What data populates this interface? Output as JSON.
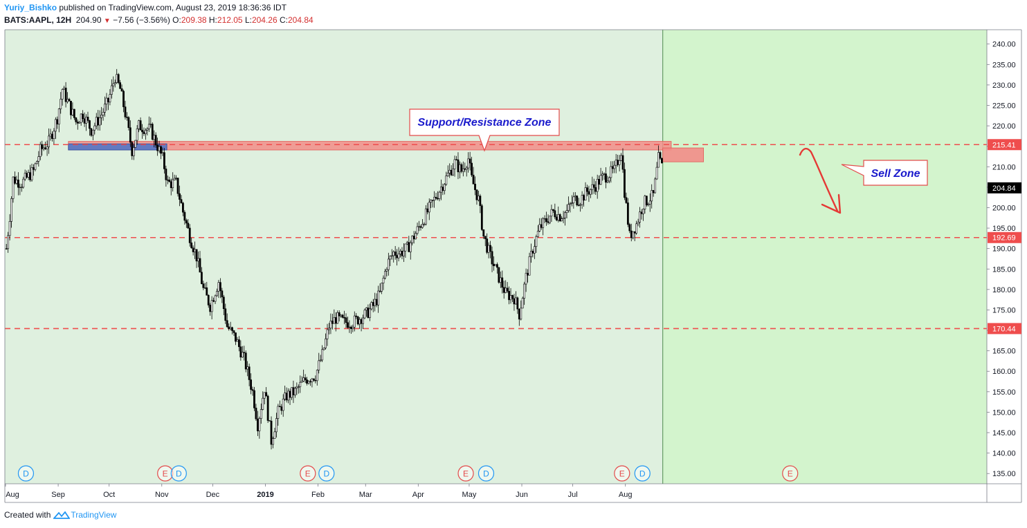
{
  "header": {
    "author": "Yuriy_Bishko",
    "published": "published on TradingView.com, August 23, 2019 18:36:36 IDT",
    "symbol": "BATS:AAPL, 12H",
    "last": "204.90",
    "change": "−7.56 (−3.56%)",
    "open_label": "O:",
    "open": "209.38",
    "high_label": "H:",
    "high": "212.05",
    "low_label": "L:",
    "low": "204.26",
    "close_label": "C:",
    "close": "204.84"
  },
  "footer": {
    "created": "Created with",
    "brand": "TradingView"
  },
  "colors": {
    "past_bg": "#dff0df",
    "future_bg": "#d3f4cd",
    "level": "#ef4d4d",
    "zone_fill": "#f28d88",
    "blue_zone": "#4a74c9",
    "up": "#ffffff",
    "down": "#000000",
    "callout_text": "#1a1acc",
    "event_E": "#e34a4a",
    "event_D": "#2196f3"
  },
  "chart_data": {
    "type": "candlestick",
    "symbol": "BATS:AAPL",
    "timeframe": "12H",
    "ylim": [
      132.5,
      243.5
    ],
    "y_ticks": [
      "135.00",
      "140.00",
      "145.00",
      "150.00",
      "155.00",
      "160.00",
      "165.00",
      "170.00",
      "175.00",
      "180.00",
      "185.00",
      "190.00",
      "195.00",
      "200.00",
      "205.00",
      "210.00",
      "215.00",
      "220.00",
      "225.00",
      "230.00",
      "235.00",
      "240.00"
    ],
    "x_ticks": [
      {
        "label": "Aug",
        "day": 0
      },
      {
        "label": "Sep",
        "day": 31
      },
      {
        "label": "Oct",
        "day": 61
      },
      {
        "label": "Nov",
        "day": 92
      },
      {
        "label": "Dec",
        "day": 122
      },
      {
        "label": "2019",
        "day": 153
      },
      {
        "label": "Feb",
        "day": 184
      },
      {
        "label": "Mar",
        "day": 212
      },
      {
        "label": "Apr",
        "day": 243
      },
      {
        "label": "May",
        "day": 273
      },
      {
        "label": "Jun",
        "day": 304
      },
      {
        "label": "Jul",
        "day": 334
      },
      {
        "label": "Aug",
        "day": 365
      }
    ],
    "levels": [
      {
        "value": 215.41,
        "label": "215.41"
      },
      {
        "value": 192.69,
        "label": "192.69"
      },
      {
        "value": 170.44,
        "label": "170.44"
      }
    ],
    "last_price": {
      "value": 204.84,
      "label": "204.84"
    },
    "current_day": 387,
    "support_resistance_zone": {
      "label": "Support/Resistance Zone",
      "y_low": 214.1,
      "y_high": 216.2,
      "day_start": 37,
      "day_end": 392
    },
    "blue_zone": {
      "y_low": 214.1,
      "y_high": 215.6,
      "day_start": 37,
      "day_end": 95
    },
    "sell_zone": {
      "label": "Sell Zone",
      "y_low": 211.2,
      "y_high": 214.6,
      "day_start": 387,
      "day_end": 411
    },
    "events": [
      {
        "type": "D",
        "day": 12
      },
      {
        "type": "E",
        "day": 94
      },
      {
        "type": "D",
        "day": 102
      },
      {
        "type": "E",
        "day": 178
      },
      {
        "type": "D",
        "day": 189
      },
      {
        "type": "E",
        "day": 271
      },
      {
        "type": "D",
        "day": 283
      },
      {
        "type": "E",
        "day": 363
      },
      {
        "type": "D",
        "day": 375
      },
      {
        "type": "E",
        "day": 462
      }
    ],
    "price_path": [
      [
        0,
        190
      ],
      [
        2,
        198
      ],
      [
        4,
        207
      ],
      [
        9,
        206
      ],
      [
        16,
        209
      ],
      [
        20,
        214
      ],
      [
        25,
        216
      ],
      [
        30,
        222
      ],
      [
        33,
        229
      ],
      [
        37,
        225
      ],
      [
        41,
        221
      ],
      [
        45,
        223
      ],
      [
        50,
        219
      ],
      [
        55,
        222
      ],
      [
        60,
        226
      ],
      [
        64,
        232
      ],
      [
        67,
        229
      ],
      [
        70,
        223
      ],
      [
        74,
        214
      ],
      [
        78,
        220
      ],
      [
        85,
        219
      ],
      [
        92,
        212
      ],
      [
        95,
        206
      ],
      [
        100,
        206
      ],
      [
        104,
        199
      ],
      [
        108,
        193
      ],
      [
        112,
        188
      ],
      [
        116,
        180
      ],
      [
        120,
        176
      ],
      [
        125,
        182
      ],
      [
        130,
        171
      ],
      [
        135,
        168
      ],
      [
        140,
        163
      ],
      [
        145,
        155
      ],
      [
        148,
        147
      ],
      [
        152,
        156
      ],
      [
        156,
        143
      ],
      [
        160,
        150
      ],
      [
        165,
        154
      ],
      [
        170,
        155
      ],
      [
        176,
        158
      ],
      [
        182,
        159
      ],
      [
        186,
        164
      ],
      [
        190,
        171
      ],
      [
        194,
        173
      ],
      [
        199,
        172
      ],
      [
        204,
        172
      ],
      [
        208,
        173
      ],
      [
        212,
        174
      ],
      [
        216,
        176
      ],
      [
        220,
        179
      ],
      [
        224,
        186
      ],
      [
        228,
        189
      ],
      [
        232,
        189
      ],
      [
        236,
        190
      ],
      [
        240,
        193
      ],
      [
        244,
        196
      ],
      [
        248,
        199
      ],
      [
        252,
        202
      ],
      [
        256,
        205
      ],
      [
        260,
        208
      ],
      [
        264,
        211
      ],
      [
        268,
        209
      ],
      [
        272,
        212
      ],
      [
        274,
        207
      ],
      [
        278,
        202
      ],
      [
        281,
        193
      ],
      [
        285,
        188
      ],
      [
        290,
        183
      ],
      [
        294,
        179
      ],
      [
        299,
        178
      ],
      [
        302,
        174
      ],
      [
        306,
        183
      ],
      [
        310,
        190
      ],
      [
        314,
        195
      ],
      [
        318,
        197
      ],
      [
        322,
        199
      ],
      [
        326,
        198
      ],
      [
        330,
        199
      ],
      [
        334,
        202
      ],
      [
        338,
        202
      ],
      [
        342,
        204
      ],
      [
        346,
        205
      ],
      [
        350,
        207
      ],
      [
        354,
        208
      ],
      [
        358,
        209
      ],
      [
        362,
        214
      ],
      [
        364,
        204
      ],
      [
        367,
        193
      ],
      [
        371,
        196
      ],
      [
        375,
        201
      ],
      [
        378,
        202
      ],
      [
        381,
        203
      ],
      [
        384,
        212
      ],
      [
        386,
        210
      ],
      [
        387,
        205
      ]
    ],
    "annotations": [
      {
        "text": "Support/Resistance Zone",
        "kind": "callout"
      },
      {
        "text": "Sell Zone",
        "kind": "callout"
      }
    ]
  }
}
